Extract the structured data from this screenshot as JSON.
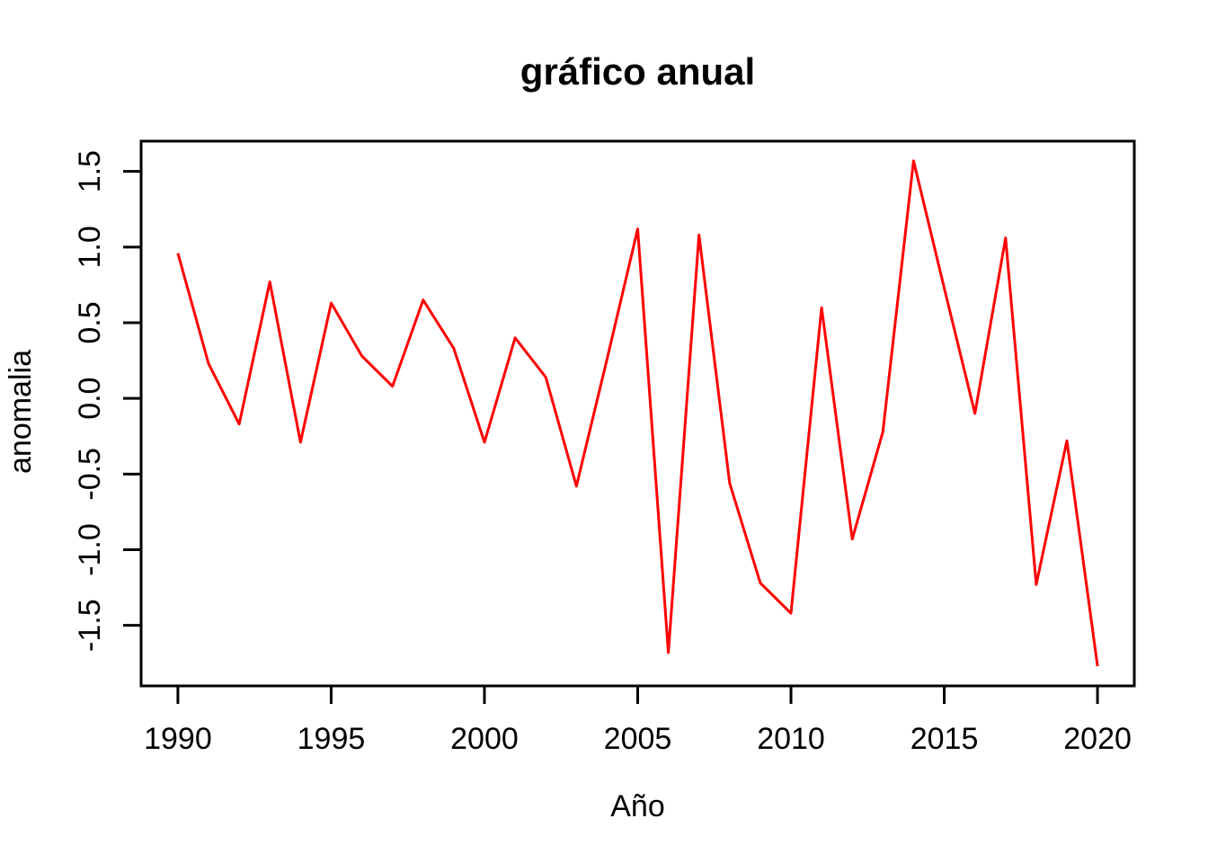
{
  "chart_data": {
    "type": "line",
    "title": "gráfico anual",
    "xlabel": "Año",
    "ylabel": "anomalia",
    "x": [
      1990,
      1991,
      1992,
      1993,
      1994,
      1995,
      1996,
      1997,
      1998,
      1999,
      2000,
      2001,
      2002,
      2003,
      2004,
      2005,
      2006,
      2007,
      2008,
      2009,
      2010,
      2011,
      2012,
      2013,
      2014,
      2015,
      2016,
      2017,
      2018,
      2019,
      2020
    ],
    "series": [
      {
        "name": "anomalia",
        "values": [
          0.96,
          0.23,
          -0.17,
          0.77,
          -0.29,
          0.63,
          0.28,
          0.08,
          0.65,
          0.33,
          -0.29,
          0.4,
          0.14,
          -0.58,
          0.26,
          1.12,
          -1.68,
          1.08,
          -0.56,
          -1.22,
          -1.42,
          0.6,
          -0.93,
          -0.22,
          1.57,
          0.73,
          -0.1,
          1.06,
          -1.23,
          -0.28,
          -1.77
        ],
        "color": "#FF0000"
      }
    ],
    "x_ticks": [
      1990,
      1995,
      2000,
      2005,
      2010,
      2015,
      2020
    ],
    "x_tick_labels": [
      "1990",
      "1995",
      "2000",
      "2005",
      "2010",
      "2015",
      "2020"
    ],
    "y_ticks": [
      -1.5,
      -1.0,
      -0.5,
      0.0,
      0.5,
      1.0,
      1.5
    ],
    "y_tick_labels": [
      "-1.5",
      "-1.0",
      "-0.5",
      "0.0",
      "0.5",
      "1.0",
      "1.5"
    ],
    "xlim": [
      1988.8,
      2021.2
    ],
    "ylim": [
      -1.9,
      1.7
    ],
    "grid": false,
    "legend": null,
    "line_color": "#FF0000",
    "axis_color": "#000000",
    "text_color": "#000000",
    "background": "#FFFFFF"
  }
}
